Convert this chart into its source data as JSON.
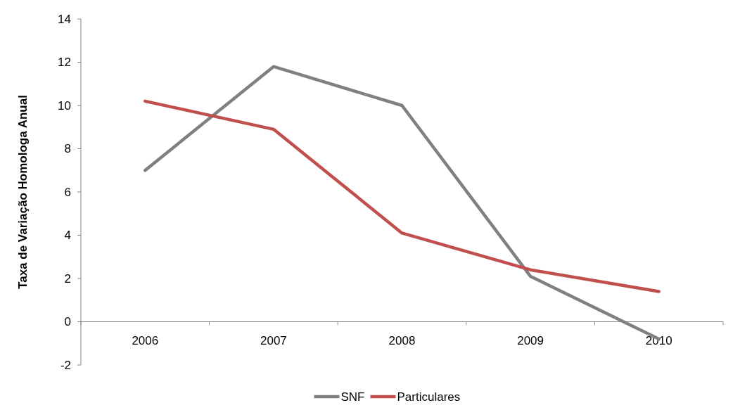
{
  "chart_data": {
    "type": "line",
    "ylabel": "Taxa de Variação Homologa Anual",
    "categories": [
      "2006",
      "2007",
      "2008",
      "2009",
      "2010"
    ],
    "series": [
      {
        "name": "SNF",
        "color": "#808080",
        "values": [
          7,
          11.8,
          10,
          2.1,
          -0.8
        ]
      },
      {
        "name": "Particulares",
        "color": "#c0504d",
        "values": [
          10.2,
          8.9,
          4.1,
          2.4,
          1.4
        ]
      }
    ],
    "ylim": [
      -2,
      14
    ],
    "yticks": [
      -2,
      0,
      2,
      4,
      6,
      8,
      10,
      12,
      14
    ],
    "legend": "bottom",
    "marker": "none",
    "line_style": "solid",
    "grid": false
  }
}
